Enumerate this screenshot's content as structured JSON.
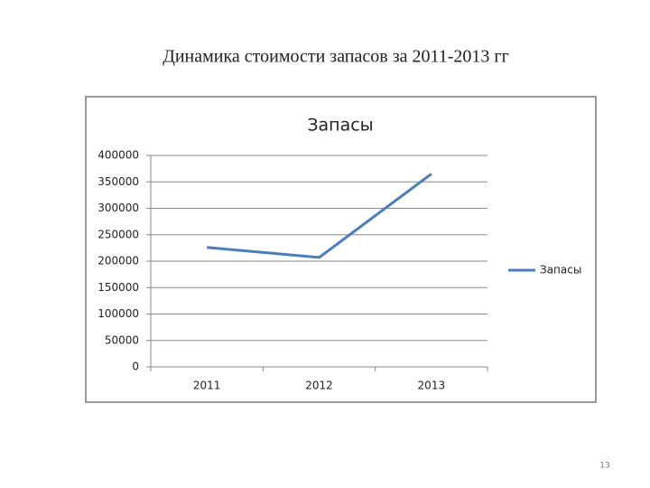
{
  "slide_title": "Динамика стоимости запасов за 2011-2013 гг",
  "page_number": "13",
  "chart_data": {
    "type": "line",
    "title": "Запасы",
    "categories": [
      "2011",
      "2012",
      "2013"
    ],
    "series": [
      {
        "name": "Запасы",
        "color": "#4a7ebb",
        "values": [
          226000,
          207000,
          365000
        ]
      }
    ],
    "ylim": [
      0,
      400000
    ],
    "yticks": [
      0,
      50000,
      100000,
      150000,
      200000,
      250000,
      300000,
      350000,
      400000
    ],
    "grid": true,
    "legend": "right"
  }
}
